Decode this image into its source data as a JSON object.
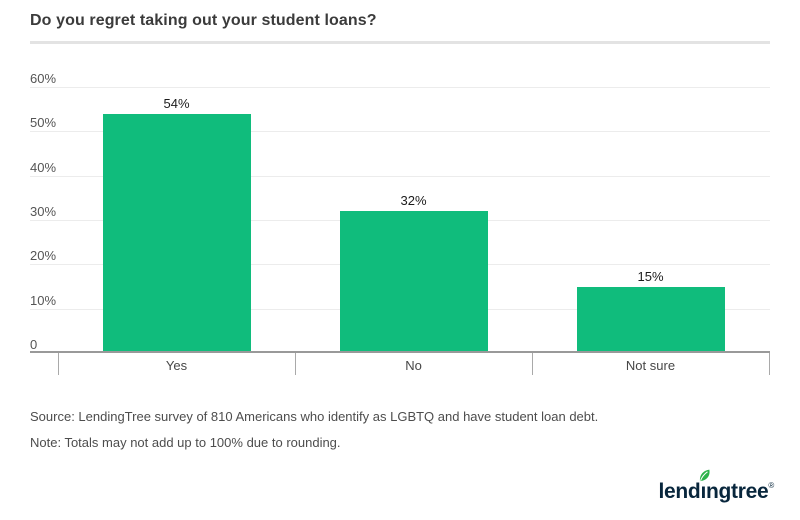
{
  "page": {
    "title": "Do you regret taking out your student loans?"
  },
  "chart_data": {
    "type": "bar",
    "title": "Do you regret taking out your student loans?",
    "categories": [
      "Yes",
      "No",
      "Not sure"
    ],
    "values": [
      54,
      32,
      15
    ],
    "value_labels": [
      "54%",
      "32%",
      "15%"
    ],
    "xlabel": "",
    "ylabel": "",
    "ylim": [
      0,
      60
    ],
    "y_ticks": [
      {
        "value": 0,
        "label": "0"
      },
      {
        "value": 10,
        "label": "10%"
      },
      {
        "value": 20,
        "label": "20%"
      },
      {
        "value": 30,
        "label": "30%"
      },
      {
        "value": 40,
        "label": "40%"
      },
      {
        "value": 50,
        "label": "50%"
      },
      {
        "value": 60,
        "label": "60%"
      }
    ],
    "grid": "horizontal",
    "legend": "none",
    "bar_color": "#10bc7c"
  },
  "footer": {
    "source": "Source: LendingTree survey of 810 Americans who identify as LGBTQ and have student loan debt.",
    "note": "Note: Totals may not add up to 100% due to rounding."
  },
  "logo": {
    "name": "lendingtree",
    "text_before_i": "lend",
    "dotless_i": "ı",
    "text_after_i": "ngtree",
    "registered_mark": "®",
    "wordmark_color": "#08263c",
    "leaf_color": "#2db34a"
  },
  "colors": {
    "bar": "#10bc7c",
    "title_text": "#3b3b3b",
    "axis_text": "#555555",
    "gridline": "#ececec",
    "baseline": "#999999",
    "footer_text": "#4d4d4d"
  }
}
